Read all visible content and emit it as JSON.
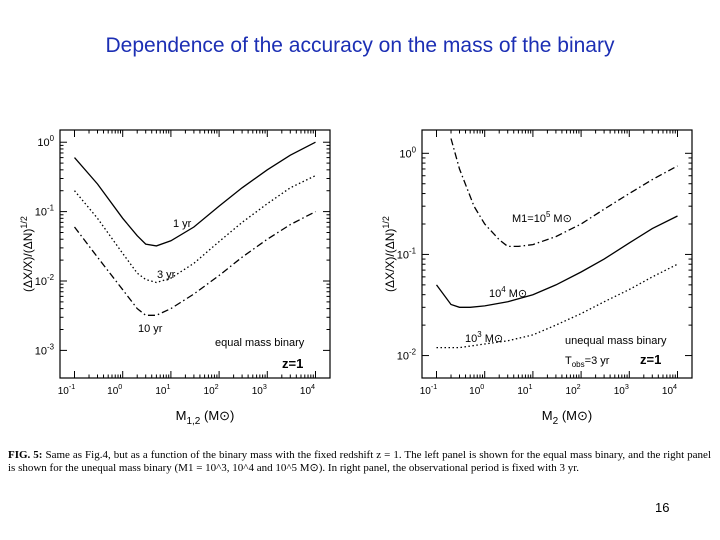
{
  "slide": {
    "title": "Dependence of the accuracy on the mass of the binary",
    "page_number": "16"
  },
  "caption": {
    "label": "FIG. 5:",
    "text": "Same as Fig.4, but as a function of the binary mass with the fixed redshift z = 1. The left panel is shown for the equal mass binary, and the right panel is shown for the unequal mass binary (M1 = 10^3, 10^4 and 10^5 M⊙). In right panel, the observational period is fixed with 3 yr."
  },
  "chart_data": [
    {
      "type": "line",
      "panel": "left",
      "xlabel": "M1,2 (M⊙)",
      "ylabel": "(ΔX/X)/(ΔN)^1/2",
      "xscale": "log",
      "yscale": "log",
      "xlim": [
        0.05,
        20000
      ],
      "ylim": [
        0.0004,
        1.5
      ],
      "xticks": [
        "10^-1",
        "10^0",
        "10^1",
        "10^2",
        "10^3",
        "10^4"
      ],
      "yticks": [
        "10^0",
        "10^-1",
        "10^-2",
        "10^-3"
      ],
      "annotations": [
        "equal mass binary",
        "z=1"
      ],
      "series": [
        {
          "name": "1 yr",
          "style": "solid",
          "x": [
            0.1,
            0.3,
            1,
            2,
            3,
            5,
            10,
            30,
            100,
            300,
            1000,
            3000,
            10000
          ],
          "y": [
            0.6,
            0.25,
            0.08,
            0.045,
            0.034,
            0.032,
            0.038,
            0.06,
            0.12,
            0.22,
            0.4,
            0.65,
            1.0
          ]
        },
        {
          "name": "3 yr",
          "style": "dotted",
          "x": [
            0.1,
            0.3,
            1,
            2,
            3,
            5,
            10,
            30,
            100,
            300,
            1000,
            3000,
            10000
          ],
          "y": [
            0.2,
            0.08,
            0.025,
            0.013,
            0.0105,
            0.0095,
            0.011,
            0.018,
            0.037,
            0.07,
            0.13,
            0.22,
            0.33
          ]
        },
        {
          "name": "10 yr",
          "style": "dash-dot",
          "x": [
            0.1,
            0.3,
            1,
            2,
            3,
            5,
            10,
            30,
            100,
            300,
            1000,
            3000,
            10000
          ],
          "y": [
            0.06,
            0.022,
            0.0075,
            0.004,
            0.0032,
            0.0032,
            0.004,
            0.0065,
            0.012,
            0.022,
            0.04,
            0.065,
            0.1
          ]
        }
      ]
    },
    {
      "type": "line",
      "panel": "right",
      "xlabel": "M2 (M⊙)",
      "ylabel": "(ΔX/X)/(ΔN)^1/2",
      "xscale": "log",
      "yscale": "log",
      "xlim": [
        0.05,
        20000
      ],
      "ylim": [
        0.006,
        1.7
      ],
      "xticks": [
        "10^-1",
        "10^0",
        "10^1",
        "10^2",
        "10^3",
        "10^4"
      ],
      "yticks": [
        "10^0",
        "10^-1",
        "10^-2"
      ],
      "annotations": [
        "unequal mass binary",
        "Tobs=3 yr",
        "z=1"
      ],
      "series": [
        {
          "name": "M1=10^5 M⊙",
          "style": "dash-dot",
          "x": [
            0.2,
            0.3,
            0.6,
            1,
            2,
            3,
            5,
            10,
            30,
            100,
            300,
            1000,
            3000,
            10000
          ],
          "y": [
            1.4,
            0.7,
            0.3,
            0.2,
            0.14,
            0.12,
            0.12,
            0.125,
            0.15,
            0.2,
            0.28,
            0.4,
            0.55,
            0.75
          ]
        },
        {
          "name": "10^4 M⊙",
          "style": "solid",
          "x": [
            0.1,
            0.2,
            0.3,
            0.5,
            1,
            3,
            10,
            30,
            100,
            300,
            1000,
            3000,
            10000
          ],
          "y": [
            0.05,
            0.032,
            0.03,
            0.03,
            0.031,
            0.034,
            0.04,
            0.05,
            0.067,
            0.09,
            0.13,
            0.18,
            0.24
          ]
        },
        {
          "name": "10^3 M⊙",
          "style": "dotted",
          "x": [
            0.1,
            0.3,
            1,
            3,
            10,
            30,
            100,
            300,
            1000,
            3000,
            10000
          ],
          "y": [
            0.012,
            0.012,
            0.013,
            0.014,
            0.016,
            0.02,
            0.026,
            0.034,
            0.045,
            0.06,
            0.08
          ]
        }
      ]
    }
  ]
}
